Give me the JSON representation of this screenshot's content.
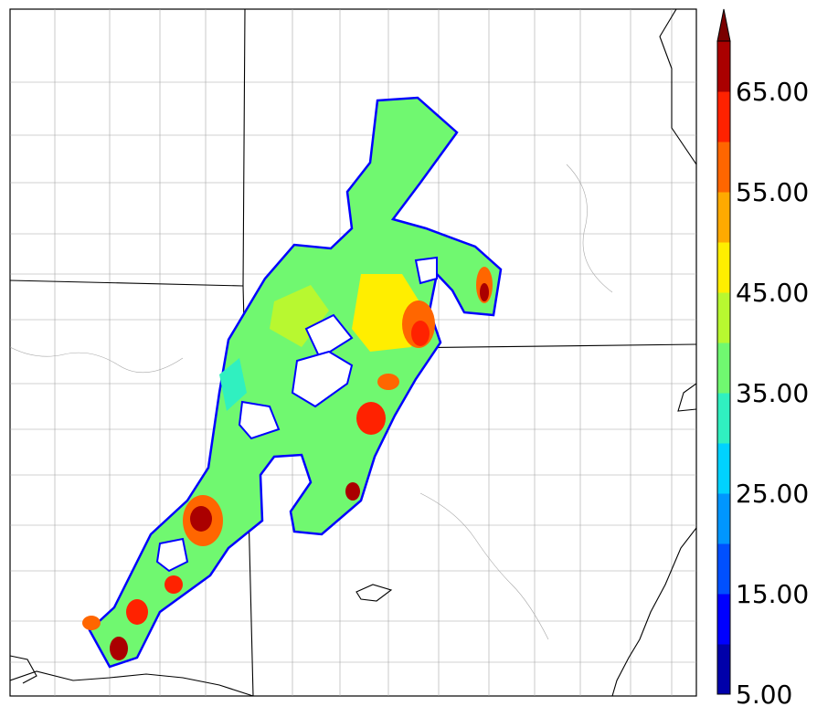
{
  "colorbar": {
    "tick_labels": [
      "65.00",
      "55.00",
      "45.00",
      "35.00",
      "25.00",
      "15.00",
      "5.00"
    ],
    "levels": [
      5,
      10,
      15,
      20,
      25,
      30,
      35,
      40,
      45,
      50,
      55,
      60,
      65,
      70
    ],
    "colors": [
      "#0000aa",
      "#0000ff",
      "#0050ff",
      "#0096ff",
      "#00d2ff",
      "#30f0c0",
      "#70f870",
      "#b8f830",
      "#ffee00",
      "#ffaa00",
      "#ff6600",
      "#ff2200",
      "#aa0000"
    ],
    "extend_color": "#7a0000"
  },
  "map": {
    "background": "#ffffff",
    "county_line_color": "#a0a0a0",
    "state_line_color": "#000000",
    "field_outline_color": "#0000ff"
  }
}
